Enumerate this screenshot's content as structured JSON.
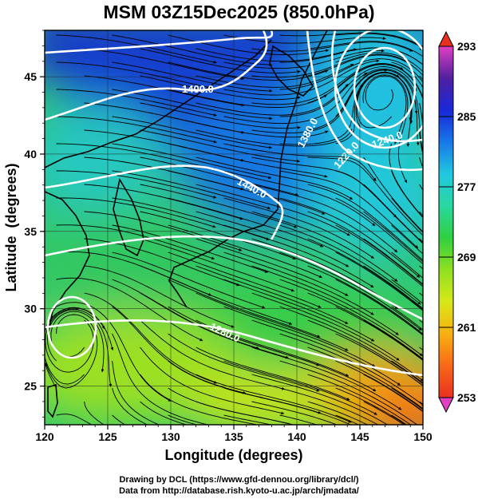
{
  "title": "MSM 03Z15Dec2025 (850.0hPa)",
  "map": {
    "xlabel": "Longitude (degrees)",
    "ylabel": "Latitude  (degrees)",
    "x_range": [
      120,
      150
    ],
    "y_range": [
      22.5,
      48
    ],
    "x_ticks": [
      "120",
      "125",
      "130",
      "135",
      "140",
      "145",
      "150"
    ],
    "y_ticks": [
      "25",
      "30",
      "35",
      "40",
      "45"
    ],
    "grid": true,
    "fields": {
      "shading": "temperature (colorbar 253-293)",
      "contours": "geopotential height (white, labeled)",
      "vectors": "wind streamlines (black)"
    },
    "contour_labels": [
      "1400.0",
      "1440.0",
      "1380.0",
      "1220.0",
      "1240.0",
      "1280.0"
    ],
    "colorbar": {
      "ticks": [
        "293",
        "285",
        "277",
        "269",
        "261",
        "253"
      ],
      "min": 253,
      "max": 293,
      "colors": [
        "#e040c0",
        "#5020a0",
        "#1828d8",
        "#1878e8",
        "#20c8e0",
        "#28d8a0",
        "#30d040",
        "#90e020",
        "#d8e818",
        "#f8b010",
        "#f86818",
        "#e83020"
      ]
    }
  },
  "credits": {
    "line1": "Drawing by DCL (https://www.gfd-dennou.org/library/dcl/)",
    "line2": "Data from http://database.rish.kyoto-u.ac.jp/arch/jmadata/"
  }
}
